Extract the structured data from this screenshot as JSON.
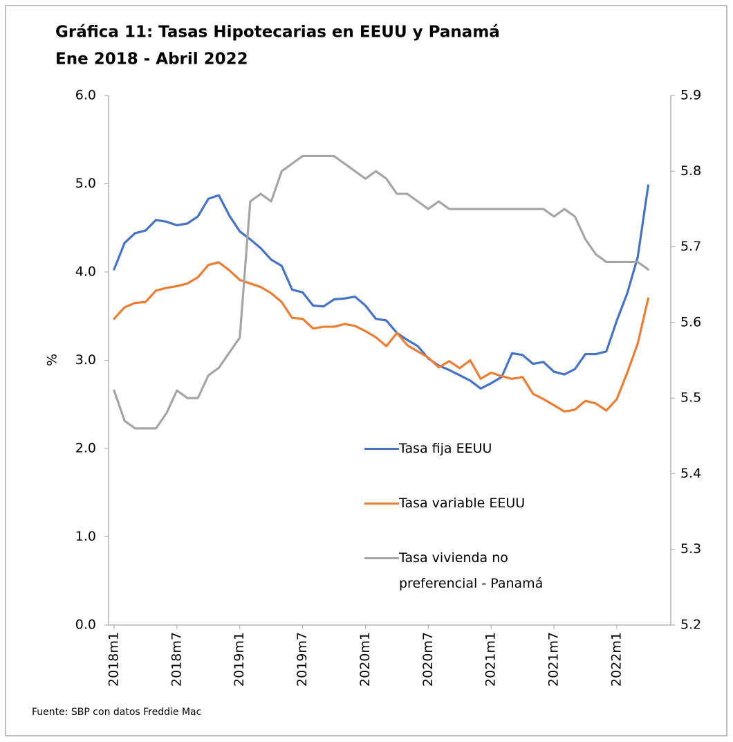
{
  "chart_data": {
    "type": "line",
    "title": "Gráfica 11:  Tasas Hipotecarias en EEUU y Panamá",
    "subtitle": "Ene 2018 - Abril 2022",
    "y_label": "%",
    "source": "Fuente: SBP con datos Freddie Mac",
    "categories": [
      "2018m1",
      null,
      null,
      null,
      null,
      null,
      "2018m7",
      null,
      null,
      null,
      null,
      null,
      "2019m1",
      null,
      null,
      null,
      null,
      null,
      "2019m7",
      null,
      null,
      null,
      null,
      null,
      "2020m1",
      null,
      null,
      null,
      null,
      null,
      "2020m7",
      null,
      null,
      null,
      null,
      null,
      "2021m1",
      null,
      null,
      null,
      null,
      null,
      "2021m7",
      null,
      null,
      null,
      null,
      null,
      "2022m1",
      null,
      null,
      null
    ],
    "ylim": [
      0,
      6
    ],
    "yticks": [
      {
        "value": 0,
        "label": "0.0"
      },
      {
        "value": 1,
        "label": "1.0"
      },
      {
        "value": 2,
        "label": "2.0"
      },
      {
        "value": 3,
        "label": "3.0"
      },
      {
        "value": 4,
        "label": "4.0"
      },
      {
        "value": 5,
        "label": "5.0"
      },
      {
        "value": 6,
        "label": "6.0"
      }
    ],
    "y2lim": [
      5.2,
      5.9
    ],
    "y2ticks": [
      5.2,
      5.3,
      5.4,
      5.5,
      5.6,
      5.7,
      5.8,
      5.9
    ],
    "grid": false,
    "series": [
      {
        "name": "Tasa fija EEUU",
        "color": "#4472c4",
        "values": [
          4.03,
          4.33,
          4.44,
          4.47,
          4.59,
          4.57,
          4.53,
          4.55,
          4.63,
          4.83,
          4.87,
          4.64,
          4.46,
          4.37,
          4.27,
          4.14,
          4.07,
          3.8,
          3.77,
          3.62,
          3.61,
          3.69,
          3.7,
          3.72,
          3.62,
          3.47,
          3.45,
          3.31,
          3.23,
          3.16,
          3.02,
          2.94,
          2.89,
          2.83,
          2.77,
          2.68,
          2.74,
          2.81,
          3.08,
          3.06,
          2.96,
          2.98,
          2.87,
          2.84,
          2.9,
          3.07,
          3.07,
          3.1,
          3.45,
          3.76,
          4.17,
          4.98
        ]
      },
      {
        "name": "Tasa variable EEUU",
        "color": "#ed7d31",
        "values": [
          3.47,
          3.6,
          3.65,
          3.66,
          3.79,
          3.82,
          3.84,
          3.87,
          3.94,
          4.08,
          4.11,
          4.02,
          3.91,
          3.87,
          3.83,
          3.76,
          3.66,
          3.48,
          3.47,
          3.36,
          3.38,
          3.38,
          3.41,
          3.39,
          3.33,
          3.26,
          3.16,
          3.31,
          3.17,
          3.1,
          3.03,
          2.92,
          2.99,
          2.91,
          3.0,
          2.79,
          2.86,
          2.82,
          2.79,
          2.81,
          2.62,
          2.56,
          2.49,
          2.42,
          2.44,
          2.54,
          2.51,
          2.43,
          2.56,
          2.86,
          3.19,
          3.7
        ]
      },
      {
        "name": "Tasa vivienda no preferencial - Panamá",
        "color": "#a5a5a5",
        "axis": "y2",
        "values": [
          5.51,
          5.47,
          5.46,
          5.46,
          5.46,
          5.48,
          5.51,
          5.5,
          5.5,
          5.53,
          5.54,
          5.56,
          5.58,
          5.76,
          5.77,
          5.76,
          5.8,
          5.81,
          5.82,
          5.82,
          5.82,
          5.82,
          5.81,
          5.8,
          5.79,
          5.8,
          5.79,
          5.77,
          5.77,
          5.76,
          5.75,
          5.76,
          5.75,
          5.75,
          5.75,
          5.75,
          5.75,
          5.75,
          5.75,
          5.75,
          5.75,
          5.75,
          5.74,
          5.75,
          5.74,
          5.71,
          5.69,
          5.68,
          5.68,
          5.68,
          5.68,
          5.67
        ]
      }
    ]
  }
}
